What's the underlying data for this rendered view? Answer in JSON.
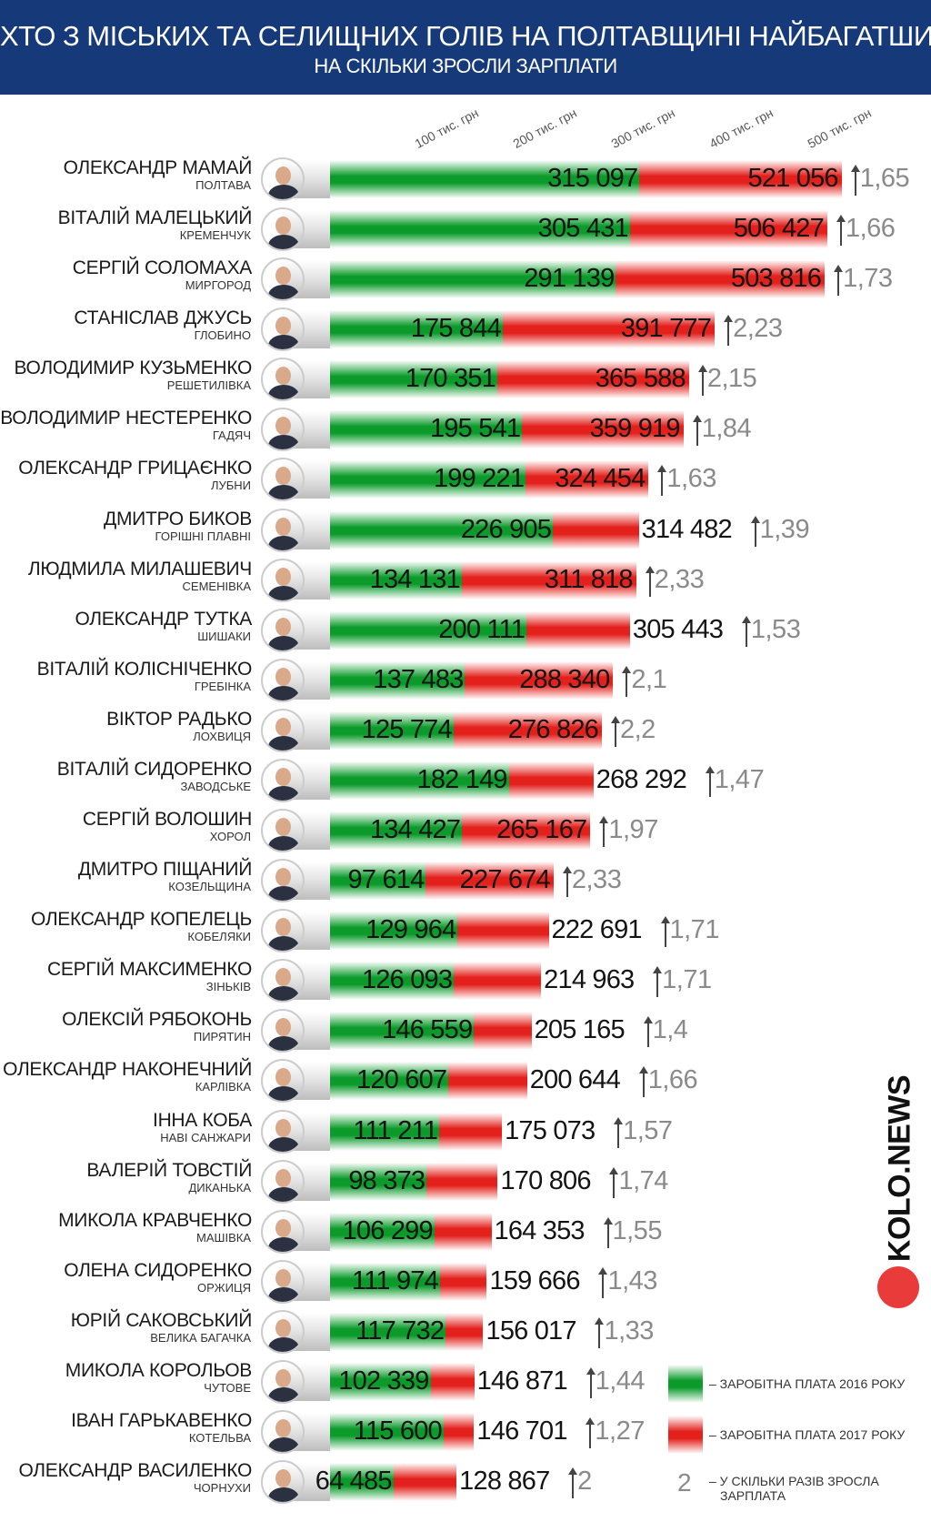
{
  "header": {
    "title": "ХТО З МІСЬКИХ ТА СЕЛИЩНИХ ГОЛІВ НА ПОЛТАВЩИНІ НАЙБАГАТШИЙ",
    "subtitle": "НА СКІЛЬКИ ЗРОСЛИ ЗАРПЛАТИ"
  },
  "colors": {
    "header_bg": "#163a79",
    "bar_2016": "#0c9b2b",
    "bar_2017": "#e3201b",
    "ratio_text": "#8a8a8a",
    "logo_dot": "#ea3b3b"
  },
  "legend": {
    "salary_2016": "– ЗАРОБІТНА ПЛАТА 2016 РОКУ",
    "salary_2017": "– ЗАРОБІТНА ПЛАТА 2017 РОКУ",
    "ratio_symbol": "2",
    "ratio_label_line1": "– У СКІЛЬКИ РАЗІВ ЗРОСЛА",
    "ratio_label_line2": "ЗАРПЛАТА"
  },
  "logo": {
    "text": "KOLO.NEWS"
  },
  "chart_data": {
    "type": "bar",
    "orientation": "horizontal",
    "title": "ХТО З МІСЬКИХ ТА СЕЛИЩНИХ ГОЛІВ НА ПОЛТАВЩИНІ НАЙБАГАТШИЙ",
    "subtitle": "НА СКІЛЬКИ ЗРОСЛИ ЗАРПЛАТИ",
    "xlabel": "",
    "ylabel": "",
    "xlim": [
      0,
      540000
    ],
    "ticks": [
      {
        "value": 100000,
        "label": "100 тис. грн"
      },
      {
        "value": 200000,
        "label": "200 тис. грн"
      },
      {
        "value": 300000,
        "label": "300 тис. грн"
      },
      {
        "value": 400000,
        "label": "400 тис. грн"
      },
      {
        "value": 500000,
        "label": "500 тис. грн"
      }
    ],
    "series_names": [
      "ЗАРОБІТНА ПЛАТА 2016 РОКУ",
      "ЗАРОБІТНА ПЛАТА 2017 РОКУ"
    ],
    "rows": [
      {
        "name": "ОЛЕКСАНДР МАМАЙ",
        "city": "ПОЛТАВА",
        "v2016": 315097,
        "v2017": 521056,
        "label2016": "315 097",
        "label2017": "521 056",
        "ratio": "1,65"
      },
      {
        "name": "ВІТАЛІЙ МАЛЕЦЬКИЙ",
        "city": "КРЕМЕНЧУК",
        "v2016": 305431,
        "v2017": 506427,
        "label2016": "305 431",
        "label2017": "506 427",
        "ratio": "1,66"
      },
      {
        "name": "СЕРГІЙ СОЛОМАХА",
        "city": "МИРГОРОД",
        "v2016": 291139,
        "v2017": 503816,
        "label2016": "291 139",
        "label2017": "503 816",
        "ratio": "1,73"
      },
      {
        "name": "СТАНІСЛАВ ДЖУСЬ",
        "city": "ГЛОБИНО",
        "v2016": 175844,
        "v2017": 391777,
        "label2016": "175 844",
        "label2017": "391 777",
        "ratio": "2,23"
      },
      {
        "name": "ВОЛОДИМИР КУЗЬМЕНКО",
        "city": "РЕШЕТИЛІВКА",
        "v2016": 170351,
        "v2017": 365588,
        "label2016": "170 351",
        "label2017": "365 588",
        "ratio": "2,15"
      },
      {
        "name": "ВОЛОДИМИР НЕСТЕРЕНКО",
        "city": "ГАДЯЧ",
        "v2016": 195541,
        "v2017": 359919,
        "label2016": "195 541",
        "label2017": "359 919",
        "ratio": "1,84"
      },
      {
        "name": "ОЛЕКСАНДР ГРИЦАЄНКО",
        "city": "ЛУБНИ",
        "v2016": 199221,
        "v2017": 324454,
        "label2016": "199 221",
        "label2017": "324 454",
        "ratio": "1,63"
      },
      {
        "name": "ДМИТРО БИКОВ",
        "city": "ГОРІШНІ ПЛАВНІ",
        "v2016": 226905,
        "v2017": 314482,
        "label2016": "226 905",
        "label2017": "314 482",
        "ratio": "1,39"
      },
      {
        "name": "ЛЮДМИЛА МИЛАШЕВИЧ",
        "city": "СЕМЕНІВКА",
        "v2016": 134131,
        "v2017": 311818,
        "label2016": "134 131",
        "label2017": "311 818",
        "ratio": "2,33"
      },
      {
        "name": "ОЛЕКСАНДР ТУТКА",
        "city": "ШИШАКИ",
        "v2016": 200111,
        "v2017": 305443,
        "label2016": "200 111",
        "label2017": "305 443",
        "ratio": "1,53"
      },
      {
        "name": "ВІТАЛІЙ КОЛІСНІЧЕНКО",
        "city": "ГРЕБІНКА",
        "v2016": 137483,
        "v2017": 288340,
        "label2016": "137 483",
        "label2017": "288 340",
        "ratio": "2,1"
      },
      {
        "name": "ВІКТОР РАДЬКО",
        "city": "ЛОХВИЦЯ",
        "v2016": 125774,
        "v2017": 276826,
        "label2016": "125 774",
        "label2017": "276 826",
        "ratio": "2,2"
      },
      {
        "name": "ВІТАЛІЙ СИДОРЕНКО",
        "city": "ЗАВОДСЬКЕ",
        "v2016": 182149,
        "v2017": 268292,
        "label2016": "182 149",
        "label2017": "268 292",
        "ratio": "1,47"
      },
      {
        "name": "СЕРГІЙ ВОЛОШИН",
        "city": "ХОРОЛ",
        "v2016": 134427,
        "v2017": 265167,
        "label2016": "134 427",
        "label2017": "265 167",
        "ratio": "1,97"
      },
      {
        "name": "ДМИТРО ПІЩАНИЙ",
        "city": "КОЗЕЛЬЩИНА",
        "v2016": 97614,
        "v2017": 227674,
        "label2016": "97 614",
        "label2017": "227 674",
        "ratio": "2,33"
      },
      {
        "name": "ОЛЕКСАНДР КОПЕЛЕЦЬ",
        "city": "КОБЕЛЯКИ",
        "v2016": 129964,
        "v2017": 222691,
        "label2016": "129 964",
        "label2017": "222 691",
        "ratio": "1,71"
      },
      {
        "name": "СЕРГІЙ МАКСИМЕНКО",
        "city": "ЗІНЬКІВ",
        "v2016": 126093,
        "v2017": 214963,
        "label2016": "126 093",
        "label2017": "214 963",
        "ratio": "1,71"
      },
      {
        "name": "ОЛЕКСІЙ РЯБОКОНЬ",
        "city": "ПИРЯТИН",
        "v2016": 146559,
        "v2017": 205165,
        "label2016": "146 559",
        "label2017": "205 165",
        "ratio": "1,4"
      },
      {
        "name": "ОЛЕКСАНДР НАКОНЕЧНИЙ",
        "city": "КАРЛІВКА",
        "v2016": 120607,
        "v2017": 200644,
        "label2016": "120 607",
        "label2017": "200 644",
        "ratio": "1,66"
      },
      {
        "name": "ІННА КОБА",
        "city": "НАВІ САНЖАРИ",
        "v2016": 111211,
        "v2017": 175073,
        "label2016": "111 211",
        "label2017": "175 073",
        "ratio": "1,57"
      },
      {
        "name": "ВАЛЕРІЙ ТОВСТІЙ",
        "city": "ДИКАНЬКА",
        "v2016": 98373,
        "v2017": 170806,
        "label2016": "98 373",
        "label2017": "170 806",
        "ratio": "1,74"
      },
      {
        "name": "МИКОЛА КРАВЧЕНКО",
        "city": "МАШІВКА",
        "v2016": 106299,
        "v2017": 164353,
        "label2016": "106 299",
        "label2017": "164 353",
        "ratio": "1,55"
      },
      {
        "name": "ОЛЕНА СИДОРЕНКО",
        "city": "ОРЖИЦЯ",
        "v2016": 111974,
        "v2017": 159666,
        "label2016": "111 974",
        "label2017": "159 666",
        "ratio": "1,43"
      },
      {
        "name": "ЮРІЙ САКОВСЬКИЙ",
        "city": "ВЕЛИКА БАГАЧКА",
        "v2016": 117732,
        "v2017": 156017,
        "label2016": "117 732",
        "label2017": "156 017",
        "ratio": "1,33"
      },
      {
        "name": "МИКОЛА КОРОЛЬОВ",
        "city": "ЧУТОВЕ",
        "v2016": 102339,
        "v2017": 146871,
        "label2016": "102 339",
        "label2017": "146 871",
        "ratio": "1,44"
      },
      {
        "name": "ІВАН ГАРЬКАВЕНКО",
        "city": "КОТЕЛЬВА",
        "v2016": 115600,
        "v2017": 146701,
        "label2016": "115 600",
        "label2017": "146 701",
        "ratio": "1,27"
      },
      {
        "name": "ОЛЕКСАНДР ВАСИЛЕНКО",
        "city": "ЧОРНУХИ",
        "v2016": 64485,
        "v2017": 128867,
        "label2016": "64 485",
        "label2017": "128 867",
        "ratio": "2"
      }
    ]
  }
}
